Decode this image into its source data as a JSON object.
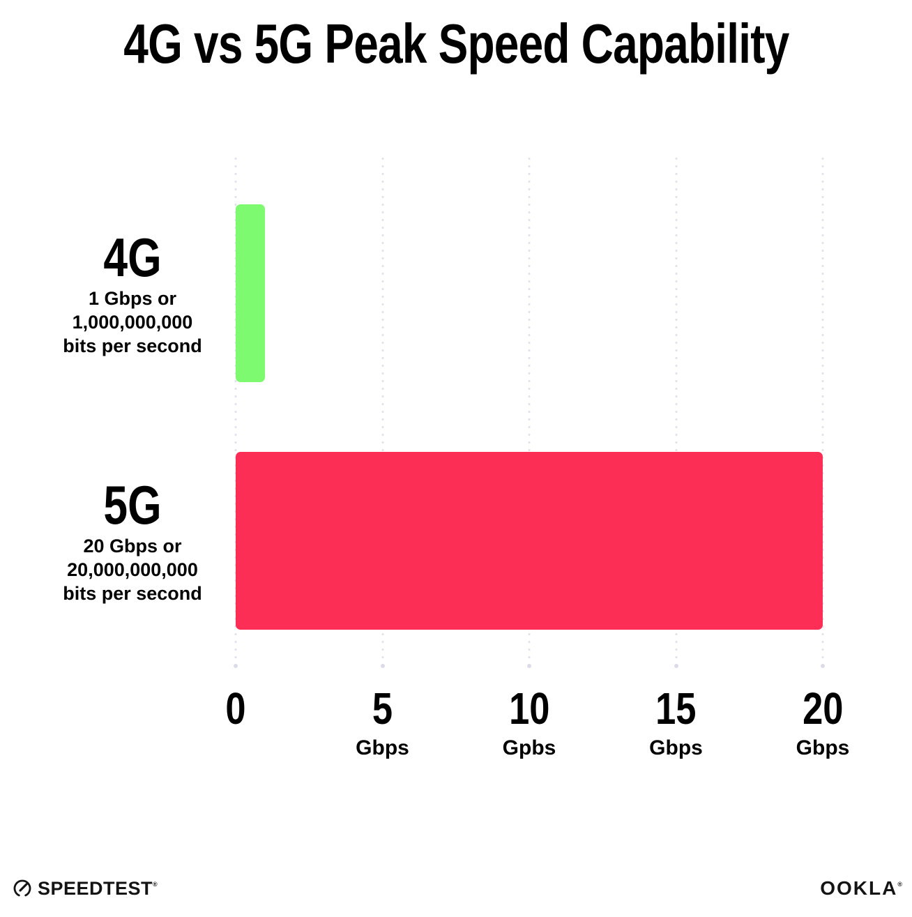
{
  "header": {
    "title": "4G vs 5G Peak Speed Capability"
  },
  "chart_data": {
    "type": "bar",
    "orientation": "horizontal",
    "title": "4G vs 5G Peak Speed Capability",
    "xlim": [
      0,
      20
    ],
    "grid": "dotted vertical gridlines at each tick",
    "legend": "none",
    "categories": [
      "4G",
      "5G"
    ],
    "values": [
      1,
      20
    ],
    "value_unit": "Gbps",
    "rows": [
      {
        "label": "4G",
        "value": 1,
        "color": "#7DFA6F",
        "sublabel_lines": [
          "1 Gbps or",
          "1,000,000,000",
          "bits per second"
        ]
      },
      {
        "label": "5G",
        "value": 20,
        "color": "#FD2E55",
        "sublabel_lines": [
          "20 Gbps or",
          "20,000,000,000",
          "bits per second"
        ]
      }
    ],
    "x_ticks": [
      {
        "value": 0,
        "label": "0",
        "unit": ""
      },
      {
        "value": 5,
        "label": "5",
        "unit": "Gbps"
      },
      {
        "value": 10,
        "label": "10",
        "unit": "Gpbs"
      },
      {
        "value": 15,
        "label": "15",
        "unit": "Gbps"
      },
      {
        "value": 20,
        "label": "20",
        "unit": "Gbps"
      }
    ]
  },
  "footer": {
    "speedtest_label": "SPEEDTEST",
    "speedtest_mark": "®",
    "ookla_label": "OOKLA",
    "ookla_mark": "®"
  },
  "colors": {
    "bar_4g": "#7DFA6F",
    "bar_5g": "#FD2E55",
    "gridline": "#E2E2EE",
    "text": "#000000",
    "background": "#FFFFFF"
  }
}
